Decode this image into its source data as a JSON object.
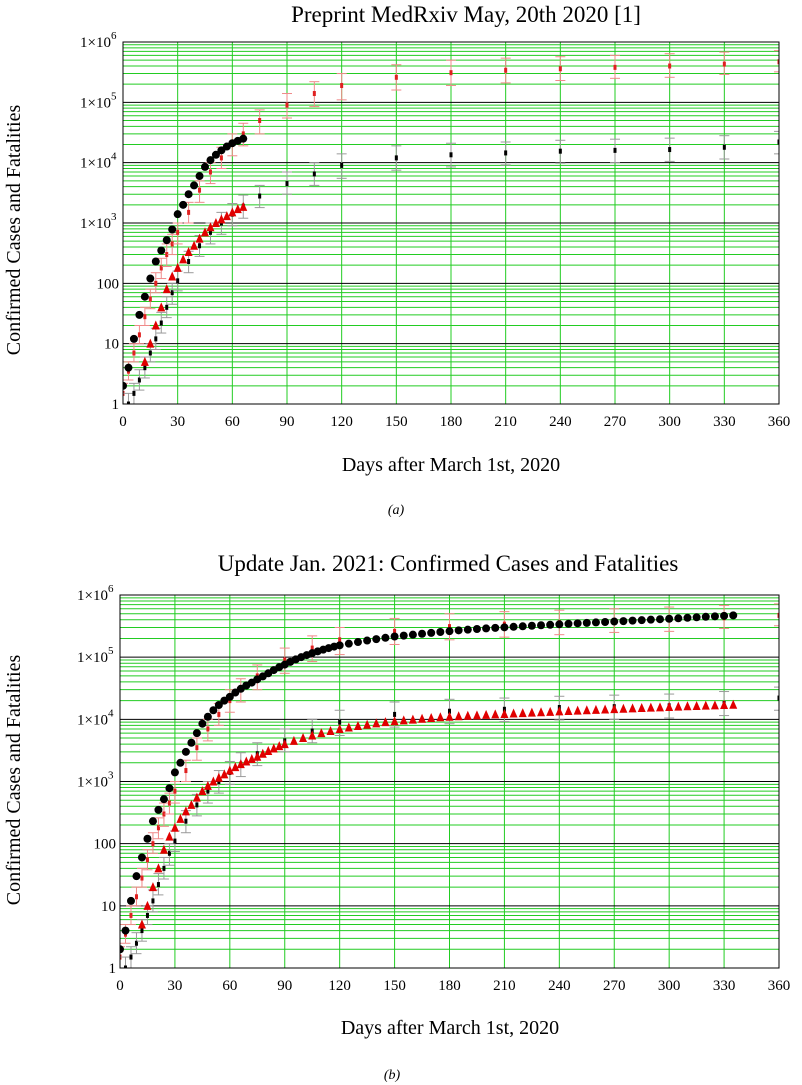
{
  "charts": [
    {
      "title": "Preprint MedRxiv May, 20th 2020 [1]",
      "xlabel": "Days after March 1st, 2020",
      "ylabel": "Confirmed Cases and Fatalities",
      "caption": "(a)",
      "ytick_main": [
        "1",
        "10",
        "100",
        "1×10",
        "1×10",
        "1×10",
        "1×10"
      ],
      "ytick_sup": [
        "",
        "",
        "",
        "3",
        "4",
        "5",
        "6"
      ]
    },
    {
      "title": "Update Jan. 2021: Confirmed Cases and Fatalities",
      "xlabel": "Days after March 1st, 2020",
      "ylabel": "Confirmed Cases and Fatalities",
      "caption": "(b)",
      "ytick_main": [
        "1",
        "10",
        "100",
        "1×10",
        "1×10",
        "1×10",
        "1×10"
      ],
      "ytick_sup": [
        "",
        "",
        "",
        "3",
        "4",
        "5",
        "6"
      ]
    }
  ],
  "colors": {
    "major_grid": "#000000",
    "minor_grid": "#22cc22",
    "cases_band": "#f08a8a",
    "cases_mean": "#e02020",
    "cases_obs": "#000000",
    "deaths_band": "#9a9a9a",
    "deaths_mean": "#000000",
    "deaths_obs": "#e00000"
  },
  "chart_data": [
    {
      "type": "scatter",
      "x_ticks": [
        0,
        30,
        60,
        90,
        120,
        150,
        180,
        210,
        240,
        270,
        300,
        330,
        360
      ],
      "xlim": [
        0,
        360
      ],
      "ylim": [
        1,
        1000000
      ],
      "yscale": "log",
      "grid": true,
      "series": [
        {
          "name": "",
          "kind": "band",
          "x": [
            0,
            3,
            6,
            9,
            12,
            15,
            18,
            21,
            24,
            27,
            30,
            36,
            42,
            48,
            54,
            60,
            66,
            75,
            90,
            105,
            120,
            150,
            180,
            210,
            240,
            270,
            300,
            330,
            360
          ],
          "values": [
            1.5,
            3.5,
            7,
            14,
            28,
            55,
            100,
            180,
            300,
            450,
            700,
            1500,
            3500,
            7000,
            12000,
            20000,
            30000,
            50000,
            90000,
            140000,
            190000,
            260000,
            310000,
            340000,
            360000,
            380000,
            400000,
            430000,
            470000
          ],
          "lower": [
            1,
            2.5,
            5,
            10,
            20,
            38,
            70,
            120,
            190,
            300,
            450,
            1000,
            2200,
            4500,
            8000,
            13000,
            19000,
            30000,
            55000,
            85000,
            110000,
            160000,
            190000,
            210000,
            230000,
            250000,
            260000,
            290000,
            320000
          ],
          "upper": [
            2.2,
            5,
            10,
            20,
            40,
            80,
            150,
            260,
            450,
            650,
            1000,
            2200,
            5000,
            10000,
            18000,
            30000,
            45000,
            75000,
            140000,
            220000,
            300000,
            420000,
            500000,
            540000,
            570000,
            600000,
            640000,
            680000,
            720000
          ]
        },
        {
          "name": "",
          "kind": "band",
          "x": [
            3,
            6,
            9,
            12,
            15,
            18,
            21,
            24,
            27,
            30,
            36,
            42,
            48,
            54,
            60,
            66,
            75,
            90,
            105,
            120,
            150,
            180,
            210,
            240,
            270,
            300,
            330,
            360
          ],
          "values": [
            1,
            1.5,
            2.5,
            4,
            7,
            12,
            22,
            40,
            70,
            110,
            230,
            420,
            700,
            1000,
            1400,
            1900,
            2800,
            4500,
            6500,
            9000,
            12000,
            13500,
            14500,
            15500,
            16000,
            16500,
            18000,
            22000
          ],
          "lower": [
            0.7,
            1,
            1.7,
            2.7,
            5,
            8,
            15,
            27,
            45,
            75,
            150,
            280,
            450,
            650,
            900,
            1200,
            1800,
            3000,
            4200,
            5500,
            7500,
            8500,
            9200,
            9800,
            10000,
            10500,
            11500,
            14000
          ],
          "upper": [
            1.5,
            2.2,
            3.7,
            6,
            10,
            18,
            33,
            60,
            100,
            160,
            340,
            620,
            1000,
            1500,
            2100,
            2900,
            4200,
            7000,
            10000,
            14000,
            19000,
            21000,
            22000,
            23500,
            24500,
            25500,
            28000,
            33000
          ]
        },
        {
          "name": "",
          "kind": "observed-cases",
          "x": [
            0,
            3,
            6,
            9,
            12,
            15,
            18,
            21,
            24,
            27,
            30,
            33,
            36,
            39,
            42,
            45,
            48,
            51,
            54,
            57,
            60,
            63,
            66
          ],
          "values": [
            2,
            4,
            12,
            30,
            60,
            120,
            230,
            350,
            520,
            780,
            1400,
            2000,
            3000,
            4200,
            6000,
            8500,
            11000,
            13500,
            16000,
            18500,
            21000,
            23000,
            25000
          ]
        },
        {
          "name": "",
          "kind": "observed-deaths",
          "x": [
            12,
            15,
            18,
            21,
            24,
            27,
            30,
            33,
            36,
            39,
            42,
            45,
            48,
            51,
            54,
            57,
            60,
            63,
            66
          ],
          "values": [
            5,
            10,
            20,
            40,
            80,
            130,
            180,
            250,
            330,
            420,
            550,
            700,
            850,
            1000,
            1150,
            1300,
            1500,
            1700,
            1850
          ]
        }
      ]
    },
    {
      "type": "scatter",
      "x_ticks": [
        0,
        30,
        60,
        90,
        120,
        150,
        180,
        210,
        240,
        270,
        300,
        330,
        360
      ],
      "xlim": [
        0,
        360
      ],
      "ylim": [
        1,
        1000000
      ],
      "yscale": "log",
      "grid": true,
      "series": [
        {
          "name": "",
          "kind": "band",
          "x": [
            0,
            3,
            6,
            9,
            12,
            15,
            18,
            21,
            24,
            27,
            30,
            36,
            42,
            48,
            54,
            60,
            66,
            75,
            90,
            105,
            120,
            150,
            180,
            210,
            240,
            270,
            300,
            330,
            360
          ],
          "values": [
            1.5,
            3.5,
            7,
            14,
            28,
            55,
            100,
            180,
            300,
            450,
            700,
            1500,
            3500,
            7000,
            12000,
            20000,
            30000,
            50000,
            90000,
            140000,
            190000,
            260000,
            310000,
            340000,
            360000,
            380000,
            400000,
            430000,
            470000
          ],
          "lower": [
            1,
            2.5,
            5,
            10,
            20,
            38,
            70,
            120,
            190,
            300,
            450,
            1000,
            2200,
            4500,
            8000,
            13000,
            19000,
            30000,
            55000,
            85000,
            110000,
            160000,
            190000,
            210000,
            230000,
            250000,
            260000,
            290000,
            320000
          ],
          "upper": [
            2.2,
            5,
            10,
            20,
            40,
            80,
            150,
            260,
            450,
            650,
            1000,
            2200,
            5000,
            10000,
            18000,
            30000,
            45000,
            75000,
            140000,
            220000,
            300000,
            420000,
            500000,
            540000,
            570000,
            600000,
            640000,
            680000,
            720000
          ]
        },
        {
          "name": "",
          "kind": "band",
          "x": [
            3,
            6,
            9,
            12,
            15,
            18,
            21,
            24,
            27,
            30,
            36,
            42,
            48,
            54,
            60,
            66,
            75,
            90,
            105,
            120,
            150,
            180,
            210,
            240,
            270,
            300,
            330,
            360
          ],
          "values": [
            1,
            1.5,
            2.5,
            4,
            7,
            12,
            22,
            40,
            70,
            110,
            230,
            420,
            700,
            1000,
            1400,
            1900,
            2800,
            4500,
            6500,
            9000,
            12000,
            13500,
            14500,
            15500,
            16000,
            16500,
            18000,
            22000
          ],
          "lower": [
            0.7,
            1,
            1.7,
            2.7,
            5,
            8,
            15,
            27,
            45,
            75,
            150,
            280,
            450,
            650,
            900,
            1200,
            1800,
            3000,
            4200,
            5500,
            7500,
            8500,
            9200,
            9800,
            10000,
            10500,
            11500,
            14000
          ],
          "upper": [
            1.5,
            2.2,
            3.7,
            6,
            10,
            18,
            33,
            60,
            100,
            160,
            340,
            620,
            1000,
            1500,
            2100,
            2900,
            4200,
            7000,
            10000,
            14000,
            19000,
            21000,
            22000,
            23500,
            24500,
            25500,
            28000,
            33000
          ]
        },
        {
          "name": "",
          "kind": "observed-cases",
          "x": [
            0,
            3,
            6,
            9,
            12,
            15,
            18,
            21,
            24,
            27,
            30,
            33,
            36,
            39,
            42,
            45,
            48,
            51,
            54,
            57,
            60,
            63,
            66,
            69,
            72,
            75,
            78,
            81,
            84,
            87,
            90,
            93,
            96,
            99,
            102,
            105,
            108,
            111,
            114,
            117,
            120,
            125,
            130,
            135,
            140,
            145,
            150,
            155,
            160,
            165,
            170,
            175,
            180,
            185,
            190,
            195,
            200,
            205,
            210,
            215,
            220,
            225,
            230,
            235,
            240,
            245,
            250,
            255,
            260,
            265,
            270,
            275,
            280,
            285,
            290,
            295,
            300,
            305,
            310,
            315,
            320,
            325,
            330,
            335
          ],
          "values": [
            2,
            4,
            12,
            30,
            60,
            120,
            230,
            350,
            520,
            780,
            1400,
            2000,
            3000,
            4200,
            6000,
            8500,
            11000,
            14000,
            17000,
            20000,
            23000,
            27000,
            31000,
            35000,
            39000,
            44000,
            49000,
            55000,
            62000,
            69000,
            76000,
            84000,
            92000,
            100000,
            108000,
            116000,
            124000,
            132000,
            140000,
            148000,
            155000,
            165000,
            175000,
            185000,
            195000,
            205000,
            215000,
            222000,
            230000,
            238000,
            246000,
            254000,
            262000,
            270000,
            277000,
            284000,
            290000,
            296000,
            302000,
            308000,
            314000,
            320000,
            326000,
            332000,
            338000,
            344000,
            350000,
            356000,
            362000,
            368000,
            374000,
            380000,
            387000,
            394000,
            401000,
            408000,
            415000,
            422000,
            430000,
            438000,
            446000,
            454000,
            462000,
            470000
          ]
        },
        {
          "name": "",
          "kind": "observed-deaths",
          "x": [
            12,
            15,
            18,
            21,
            24,
            27,
            30,
            33,
            36,
            39,
            42,
            45,
            48,
            51,
            54,
            57,
            60,
            63,
            66,
            69,
            72,
            75,
            78,
            81,
            84,
            87,
            90,
            95,
            100,
            105,
            110,
            115,
            120,
            125,
            130,
            135,
            140,
            145,
            150,
            155,
            160,
            165,
            170,
            175,
            180,
            185,
            190,
            195,
            200,
            205,
            210,
            215,
            220,
            225,
            230,
            235,
            240,
            245,
            250,
            255,
            260,
            265,
            270,
            275,
            280,
            285,
            290,
            295,
            300,
            305,
            310,
            315,
            320,
            325,
            330,
            335
          ],
          "values": [
            5,
            10,
            20,
            40,
            80,
            130,
            180,
            250,
            330,
            420,
            550,
            700,
            850,
            1000,
            1150,
            1300,
            1500,
            1700,
            1900,
            2100,
            2300,
            2500,
            2800,
            3100,
            3400,
            3700,
            4000,
            4500,
            5000,
            5500,
            6000,
            6500,
            7000,
            7400,
            7800,
            8200,
            8600,
            9000,
            9300,
            9600,
            9900,
            10200,
            10500,
            10800,
            11000,
            11200,
            11400,
            11600,
            11800,
            12000,
            12200,
            12400,
            12600,
            12800,
            13000,
            13200,
            13400,
            13600,
            13800,
            14000,
            14200,
            14400,
            14600,
            14800,
            15000,
            15200,
            15400,
            15600,
            15800,
            16000,
            16200,
            16400,
            16600,
            16800,
            17000,
            17200
          ]
        }
      ]
    }
  ]
}
